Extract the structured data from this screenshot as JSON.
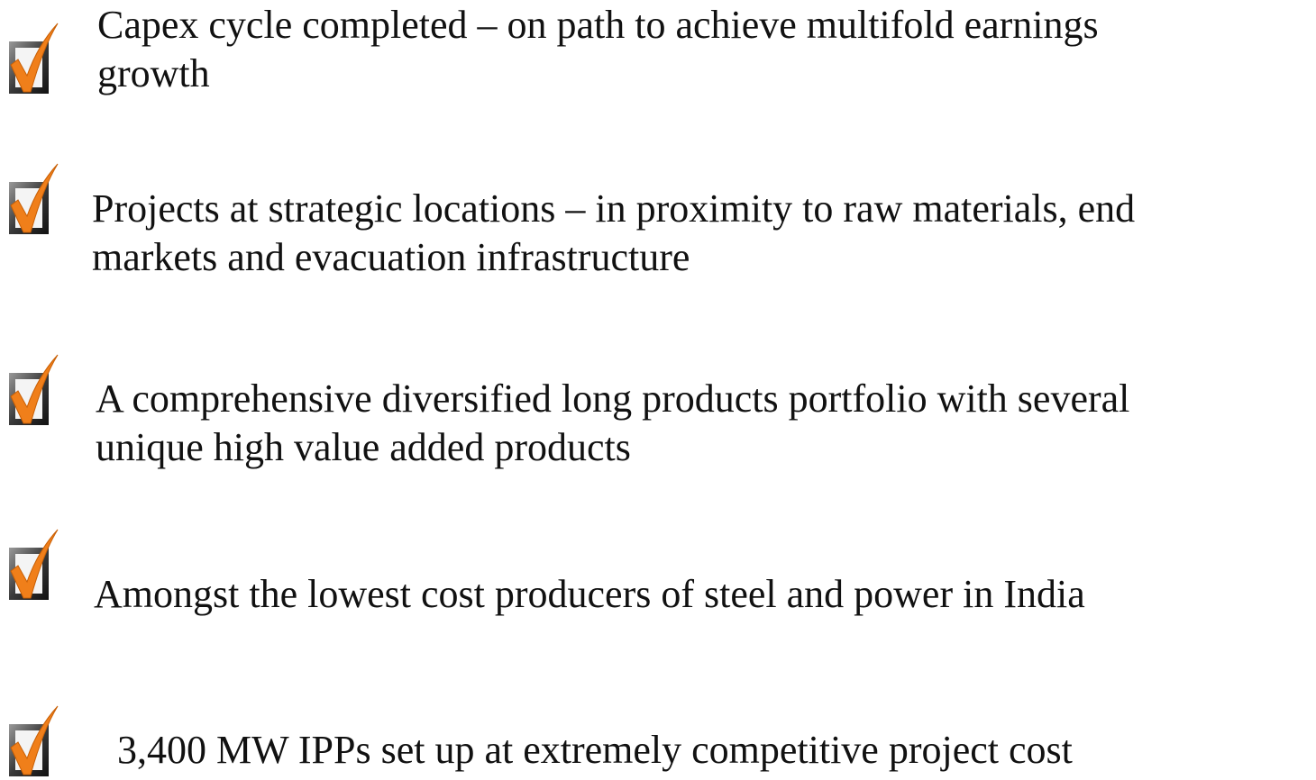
{
  "items": [
    {
      "lines": [
        "Capex cycle completed – on path to achieve multifold earnings",
        "growth"
      ]
    },
    {
      "lines": [
        "Projects at strategic locations – in proximity to raw materials, end",
        "markets and evacuation infrastructure"
      ]
    },
    {
      "lines": [
        "A comprehensive diversified long products portfolio with several",
        "unique high value added products"
      ]
    },
    {
      "lines": [
        "Amongst the lowest cost producers of steel and power in India"
      ]
    },
    {
      "lines": [
        "3,400 MW IPPs set up at extremely competitive project cost"
      ]
    }
  ]
}
